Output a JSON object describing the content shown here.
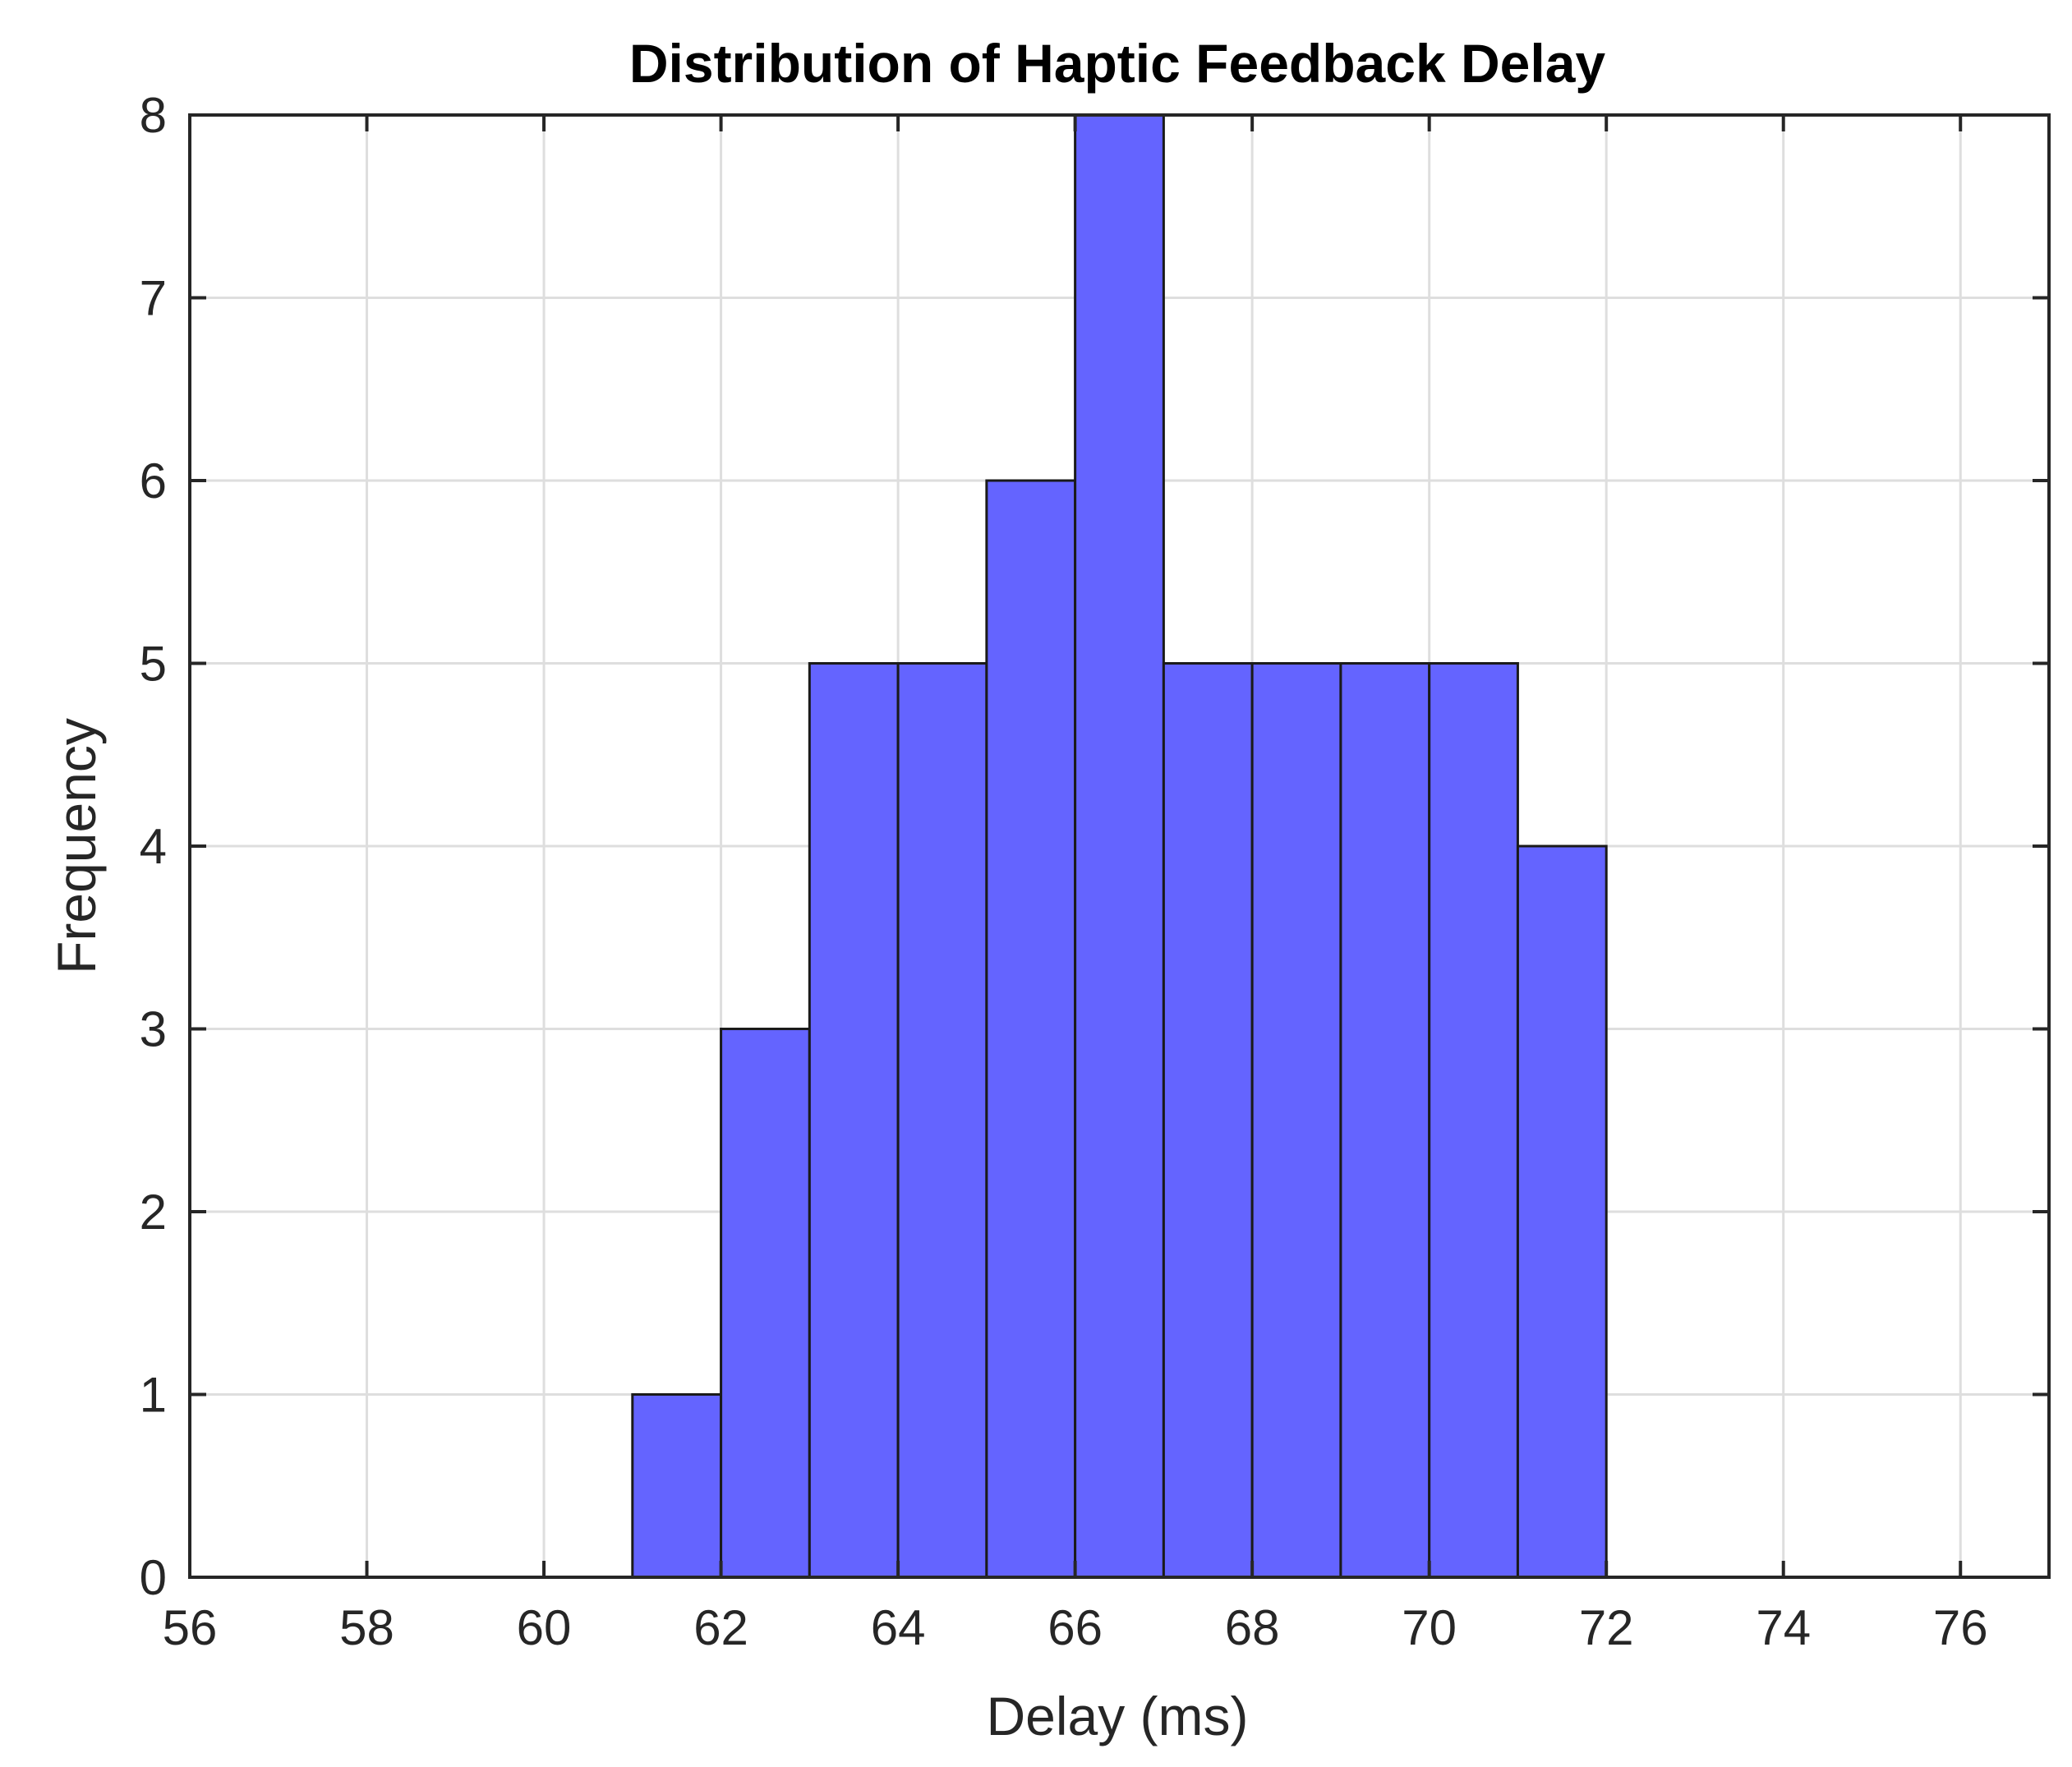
{
  "chart_data": {
    "type": "bar",
    "subtype": "histogram",
    "title": "Distribution of Haptic Feedback Delay",
    "xlabel": "Delay (ms)",
    "ylabel": "Frequency",
    "xlim": [
      56,
      77
    ],
    "ylim": [
      0,
      8
    ],
    "xticks": [
      56,
      58,
      60,
      62,
      64,
      66,
      68,
      70,
      72,
      74,
      76
    ],
    "yticks": [
      0,
      1,
      2,
      3,
      4,
      5,
      6,
      7,
      8
    ],
    "grid": true,
    "bar_color": "#6464ff",
    "edge_color": "#1a1a1a",
    "bins": [
      {
        "start": 61,
        "end": 62,
        "count": 1
      },
      {
        "start": 62,
        "end": 63,
        "count": 3
      },
      {
        "start": 63,
        "end": 64,
        "count": 5
      },
      {
        "start": 64,
        "end": 65,
        "count": 5
      },
      {
        "start": 65,
        "end": 66,
        "count": 6
      },
      {
        "start": 66,
        "end": 67,
        "count": 8
      },
      {
        "start": 67,
        "end": 68,
        "count": 5
      },
      {
        "start": 68,
        "end": 69,
        "count": 5
      },
      {
        "start": 69,
        "end": 70,
        "count": 5
      },
      {
        "start": 70,
        "end": 71,
        "count": 5
      },
      {
        "start": 71,
        "end": 72,
        "count": 4
      }
    ]
  }
}
